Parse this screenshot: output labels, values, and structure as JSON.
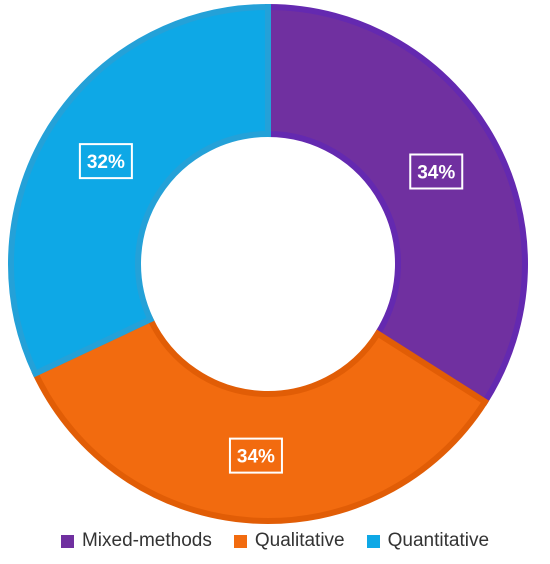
{
  "chart_data": {
    "type": "pie",
    "variant": "donut",
    "categories": [
      "Mixed-methods",
      "Qualitative",
      "Quantitative"
    ],
    "values": [
      34,
      34,
      32
    ],
    "data_labels": [
      "34%",
      "34%",
      "32%"
    ],
    "colors": [
      "#7030A0",
      "#F26B0F",
      "#0EA8E6"
    ],
    "border_colors": [
      "#6429B0",
      "#E15D06",
      "#24A1D8"
    ],
    "start_angle_deg": 0,
    "direction": "clockwise",
    "title": "",
    "legend_position": "bottom"
  }
}
